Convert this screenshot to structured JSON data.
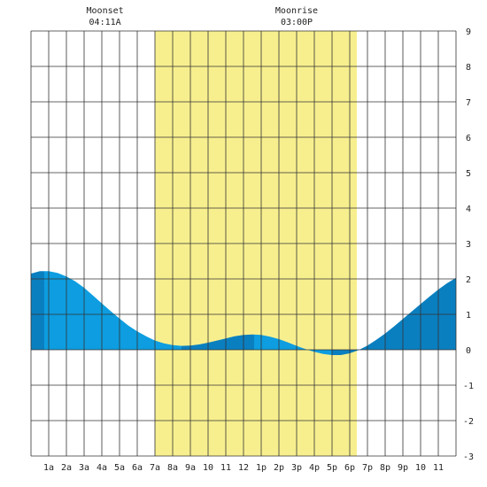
{
  "chart_data": {
    "type": "area",
    "title": "",
    "xlabel": "",
    "ylabel": "",
    "xlim": [
      0,
      24
    ],
    "ylim": [
      -3,
      9
    ],
    "yticks": [
      -3,
      -2,
      -1,
      0,
      1,
      2,
      3,
      4,
      5,
      6,
      7,
      8,
      9
    ],
    "x_tick_labels": [
      "1a",
      "2a",
      "3a",
      "4a",
      "5a",
      "6a",
      "7a",
      "8a",
      "9a",
      "10",
      "11",
      "12",
      "1p",
      "2p",
      "3p",
      "4p",
      "5p",
      "6p",
      "7p",
      "8p",
      "9p",
      "10",
      "11"
    ],
    "grid": true,
    "daylight": {
      "start_hour": 7.0,
      "end_hour": 18.4,
      "color": "#f7ef8e"
    },
    "moon_events": [
      {
        "name": "Moonset",
        "time": "04:11A",
        "hour": 4.18
      },
      {
        "name": "Moonrise",
        "time": "03:00P",
        "hour": 15.0
      }
    ],
    "series": [
      {
        "x": [
          0,
          0.5,
          1,
          1.5,
          2,
          2.5,
          3,
          3.5,
          4,
          4.5,
          5,
          5.5,
          6,
          6.5,
          7,
          7.5,
          8,
          8.5,
          9,
          9.5,
          10,
          10.5,
          11,
          11.5,
          12,
          12.5,
          13,
          13.5,
          14,
          14.5,
          15,
          15.5,
          16,
          16.5,
          17,
          17.5,
          18,
          18.5,
          19,
          19.5,
          20,
          20.5,
          21,
          21.5,
          22,
          22.5,
          23,
          23.5,
          24
        ],
        "y": [
          2.15,
          2.22,
          2.22,
          2.17,
          2.07,
          1.93,
          1.75,
          1.53,
          1.31,
          1.09,
          0.88,
          0.68,
          0.52,
          0.38,
          0.26,
          0.18,
          0.13,
          0.11,
          0.12,
          0.15,
          0.2,
          0.26,
          0.32,
          0.38,
          0.42,
          0.43,
          0.42,
          0.37,
          0.3,
          0.21,
          0.11,
          0.02,
          -0.06,
          -0.12,
          -0.15,
          -0.15,
          -0.1,
          -0.01,
          0.12,
          0.28,
          0.46,
          0.66,
          0.87,
          1.08,
          1.29,
          1.5,
          1.7,
          1.88,
          2.03
        ]
      }
    ],
    "colors": {
      "tide_light": "#0d9de0",
      "tide_dark": "#0a7fc0",
      "grid": "#333333",
      "background": "#ffffff"
    }
  }
}
